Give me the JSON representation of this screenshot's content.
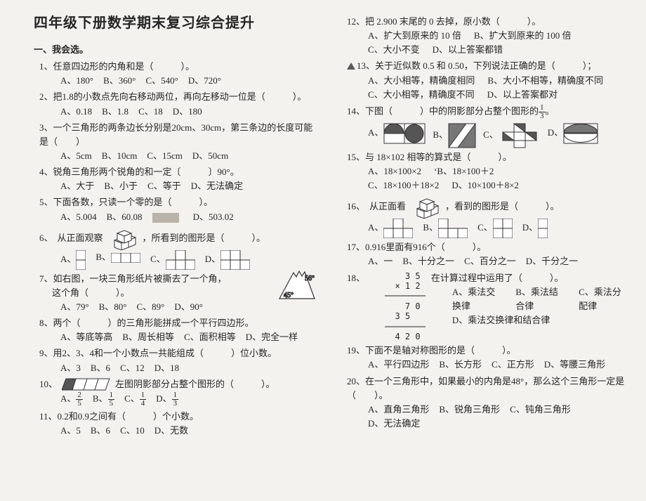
{
  "title": "四年级下册数学期末复习综合提升",
  "section1": "一、我会选。",
  "left": [
    {
      "n": "1、",
      "t": "任意四边形的内角和是（　　　）。",
      "o": [
        "A、180°",
        "B、360°",
        "C、540°",
        "D、720°"
      ]
    },
    {
      "n": "2、",
      "t": "把1.8的小数点先向右移动两位，再向左移动一位是（　　　）。",
      "o": [
        "A、0.18",
        "B、1.8",
        "C、18",
        "D、180"
      ]
    },
    {
      "n": "3、",
      "t": "一个三角形的两条边长分别是20cm、30cm，第三条边的长度可能是（　　）",
      "o": [
        "A、5cm",
        "B、10cm",
        "C、15cm",
        "D、50cm"
      ]
    },
    {
      "n": "4、",
      "t": "锐角三角形两个锐角的和一定〔　　　〕90°。",
      "o": [
        "A、大于",
        "B、小于",
        "C、等于",
        "D、无法确定"
      ]
    },
    {
      "n": "5、",
      "t": "下面各数，只读一个零的是（　　　）。",
      "o": [
        "A、5.004",
        "B、60.08",
        "",
        "D、503.02"
      ],
      "smudge": true
    },
    {
      "n": "6、",
      "t": "从正面观察",
      "t2": "，所看到的图形是（　　　）。",
      "cubes": true,
      "shapeopts": true
    },
    {
      "n": "7、",
      "t": "如右图，一块三角形纸片被撕去了一个角，",
      "t2": "这个角（　　　）。",
      "o": [
        "A、79°",
        "B、80°",
        "C、89°",
        "D、90°"
      ],
      "torn": true
    },
    {
      "n": "8、",
      "t": "两个（　　　）的三角形能拼成一个平行四边形。",
      "o": [
        "A、等底等高",
        "B、周长相等",
        "C、面积相等",
        "D、完全一样"
      ]
    },
    {
      "n": "9、",
      "t": "用2、3、4和一个小数点一共能组成（　　　）位小数。",
      "o": [
        "A、3",
        "B、6",
        "C、12",
        "D、18"
      ]
    },
    {
      "n": "10、",
      "t": "",
      "para": true,
      "t2": "左图阴影部分占整个图形的（　　　）。",
      "fracopts": [
        [
          "2",
          "5"
        ],
        [
          "1",
          "5"
        ],
        [
          "1",
          "4"
        ],
        [
          "1",
          "3"
        ]
      ]
    },
    {
      "n": "11、",
      "t": "0.2和0.9之间有（　　　）个小数。",
      "o": [
        "A、5",
        "B、6",
        "C、10",
        "D、无数"
      ]
    }
  ],
  "right": [
    {
      "n": "12、",
      "t": "把 2.900 末尾的 0 去掉，原小数（　　　）。",
      "o2": [
        [
          "A、扩大到原来的 10 倍",
          "B、扩大到原来的 100 倍"
        ],
        [
          "C、大小不变",
          "D、以上答案都错"
        ]
      ]
    },
    {
      "n": "13、",
      "tri": true,
      "t": "关于近似数 0.5 和 0.50，下列说法正确的是（　　　）；",
      "o2": [
        [
          "A、大小相等，精确度相同",
          "B、大小不相等，精确度不同"
        ],
        [
          "C、大小相等，精确度不同",
          "D、以上答案都对"
        ]
      ]
    },
    {
      "n": "14、",
      "t": "下图（　　　）中的阴影部分占整个图形的",
      "frac": [
        "1",
        "3"
      ],
      "t2": "。",
      "shapeopts14": true
    },
    {
      "n": "15、",
      "t": "与 18×102 相等的算式是（　　　）。",
      "o2": [
        [
          "A、18×100×2",
          "B、18×100＋2"
        ],
        [
          "C、18×100＋18×2",
          "D、10×100＋8×2"
        ]
      ],
      "tick": true
    },
    {
      "n": "16、",
      "t": "从正面看",
      "cubes": true,
      "t2": "，看到的图形是（　　　）。",
      "shapeopts16": true
    },
    {
      "n": "17、",
      "t": "0.916里面有916个（　　　）。",
      "o": [
        "A、一",
        "B、十分之一",
        "C、百分之一",
        "D、千分之一"
      ]
    },
    {
      "n": "18、",
      "calc": true,
      "t": "在计算过程中运用了（　　　）。",
      "o2": [
        [
          "A、乘法交换律",
          "B、乘法结合律",
          "C、乘法分配律"
        ],
        [
          "D、乘法交换律和结合律"
        ]
      ]
    },
    {
      "n": "19、",
      "t": "下面不是轴对称图形的是（　　　）。",
      "o": [
        "A、平行四边形",
        "B、长方形",
        "C、正方形",
        "D、等腰三角形"
      ]
    },
    {
      "n": "20、",
      "t": "在一个三角形中，如果最小的内角是48°，那么这个三角形一定是（　　）。",
      "o": [
        "A、直角三角形",
        "B、锐角三角形",
        "C、钝角三角形",
        "D、无法确定"
      ]
    }
  ],
  "calc_lines": [
    "    3 5",
    "  × 1 2",
    "────────",
    "    7 0",
    "  3 5",
    "────────",
    "  4 2 0"
  ]
}
